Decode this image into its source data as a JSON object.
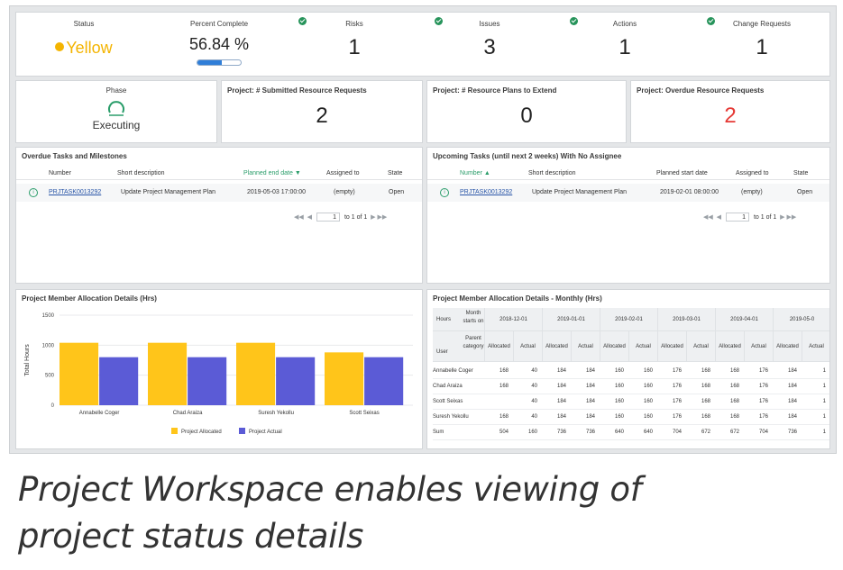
{
  "kpis": {
    "status": {
      "title": "Status",
      "value": "Yellow",
      "color": "#f4b400"
    },
    "percent_complete": {
      "title": "Percent Complete",
      "value": "56.84 %",
      "progress": 0.5684
    },
    "risks": {
      "title": "Risks",
      "value": "1"
    },
    "issues": {
      "title": "Issues",
      "value": "3"
    },
    "actions": {
      "title": "Actions",
      "value": "1"
    },
    "change_requests": {
      "title": "Change Requests",
      "value": "1"
    }
  },
  "metrics": {
    "phase": {
      "title": "Phase",
      "value": "Executing",
      "icon": "progress-circle-icon"
    },
    "submitted_requests": {
      "title": "Project: # Submitted Resource Requests",
      "value": "2"
    },
    "plans_to_extend": {
      "title": "Project: # Resource Plans to Extend",
      "value": "0"
    },
    "overdue_requests": {
      "title": "Project: Overdue Resource Requests",
      "value": "2",
      "color": "#e53935"
    }
  },
  "overdue_tasks": {
    "title": "Overdue Tasks and Milestones",
    "columns": [
      "Number",
      "Short description",
      "Planned end date ▼",
      "Assigned to",
      "State"
    ],
    "rows": [
      {
        "number": "PRJTASK0013292",
        "description": "Update Project Management Plan",
        "date": "2019-05-03 17:00:00",
        "assigned": "(empty)",
        "state": "Open"
      }
    ],
    "pager": {
      "page": "1",
      "of": "to 1 of 1"
    }
  },
  "upcoming_tasks": {
    "title": "Upcoming Tasks (until next 2 weeks) With No Assignee",
    "columns": [
      "Number ▲",
      "Short description",
      "Planned start date",
      "Assigned to",
      "State"
    ],
    "rows": [
      {
        "number": "PRJTASK0013292",
        "description": "Update Project Management Plan",
        "date": "2019-02-01 08:00:00",
        "assigned": "(empty)",
        "state": "Open"
      }
    ],
    "pager": {
      "page": "1",
      "of": "to 1 of 1"
    }
  },
  "allocation_chart": {
    "title": "Project Member Allocation Details (Hrs)"
  },
  "chart_data": {
    "type": "bar",
    "title": "Project Member Allocation Details (Hrs)",
    "ylabel": "Total Hours",
    "xlabel": "",
    "ylim": [
      0,
      1500
    ],
    "yticks": [
      0,
      500,
      1000,
      1500
    ],
    "categories": [
      "Annabelle Coger",
      "Chad Araiza",
      "Suresh Yekollu",
      "Scott Seixas"
    ],
    "series": [
      {
        "name": "Project Allocated",
        "color": "#ffc51a",
        "values": [
          1040,
          1040,
          1040,
          880
        ]
      },
      {
        "name": "Project Actual",
        "color": "#5b5bd6",
        "values": [
          800,
          800,
          800,
          800
        ]
      }
    ],
    "legend": "bottom"
  },
  "monthly_allocation": {
    "title": "Project Member Allocation Details - Monthly (Hrs)",
    "row_header_top": "Hours",
    "row_header_bottom": "User",
    "month_label": "Month starts on",
    "category_label": "Parent category",
    "months": [
      "2018-12-01",
      "2019-01-01",
      "2019-02-01",
      "2019-03-01",
      "2019-04-01",
      "2019-05-0"
    ],
    "sub_columns": [
      "Allocated",
      "Actual"
    ],
    "rows": [
      {
        "user": "Annabelle Coger",
        "values": [
          "168",
          "40",
          "184",
          "184",
          "160",
          "160",
          "176",
          "168",
          "168",
          "176",
          "184",
          "1"
        ]
      },
      {
        "user": "Chad Araiza",
        "values": [
          "168",
          "40",
          "184",
          "184",
          "160",
          "160",
          "176",
          "168",
          "168",
          "176",
          "184",
          "1"
        ]
      },
      {
        "user": "Scott Seixas",
        "values": [
          "",
          "40",
          "184",
          "184",
          "160",
          "160",
          "176",
          "168",
          "168",
          "176",
          "184",
          "1"
        ]
      },
      {
        "user": "Suresh Yekollu",
        "values": [
          "168",
          "40",
          "184",
          "184",
          "160",
          "160",
          "176",
          "168",
          "168",
          "176",
          "184",
          "1"
        ]
      },
      {
        "user": "Sum",
        "values": [
          "504",
          "160",
          "736",
          "736",
          "640",
          "640",
          "704",
          "672",
          "672",
          "704",
          "736",
          "1"
        ]
      }
    ]
  },
  "caption": {
    "line1": "Project Workspace enables viewing of",
    "line2": "project status details"
  }
}
